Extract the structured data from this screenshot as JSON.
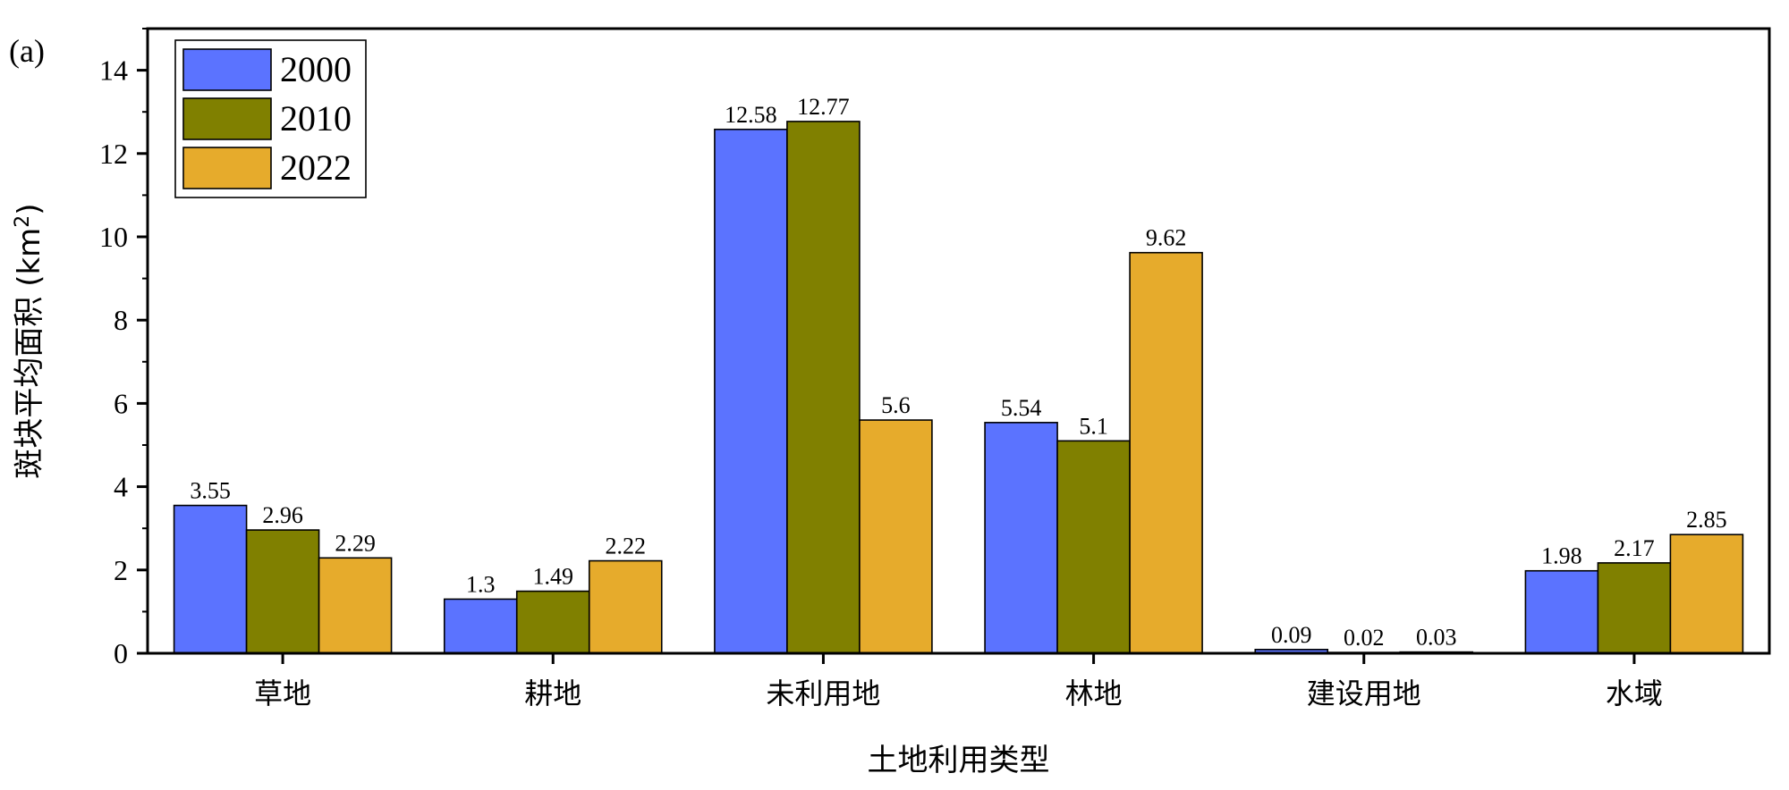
{
  "panel_label": "(a)",
  "chart_data": {
    "type": "bar",
    "categories": [
      "草地",
      "耕地",
      "未利用地",
      "林地",
      "建设用地",
      "水域"
    ],
    "series": [
      {
        "name": "2000",
        "color": "#5b73ff",
        "values": [
          3.55,
          1.3,
          12.58,
          5.54,
          0.09,
          1.98
        ]
      },
      {
        "name": "2010",
        "color": "#808000",
        "values": [
          2.96,
          1.49,
          12.77,
          5.1,
          0.02,
          2.17
        ]
      },
      {
        "name": "2022",
        "color": "#e6ab2c",
        "values": [
          2.29,
          2.22,
          5.6,
          9.62,
          0.03,
          2.85
        ]
      }
    ],
    "data_labels": [
      [
        "3.55",
        "1.3",
        "12.58",
        "5.54",
        "0.09",
        "1.98"
      ],
      [
        "2.96",
        "1.49",
        "12.77",
        "5.1",
        "0.02",
        "2.17"
      ],
      [
        "2.29",
        "2.22",
        "5.6",
        "9.62",
        "0.03",
        "2.85"
      ]
    ],
    "xlabel": "土地利用类型",
    "ylabel": "斑块平均面积 (km²)",
    "ylabel_main": "斑块平均面积 (km",
    "ylabel_sup": "2",
    "ylabel_close": ")",
    "ylim": [
      0,
      15
    ],
    "yticks": [
      0,
      2,
      4,
      6,
      8,
      10,
      12,
      14
    ],
    "grid": false,
    "legend_position": "top-left"
  }
}
